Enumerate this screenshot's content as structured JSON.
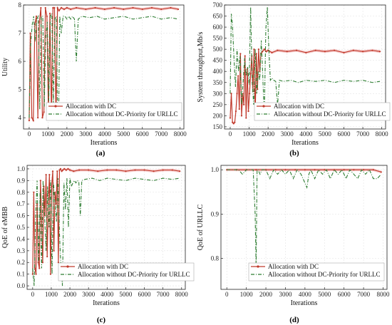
{
  "colors": {
    "dc": "#c0392b",
    "nodc": "#2e7d32",
    "band": "#f4b6b6",
    "grid": "#e3e3e3"
  },
  "legend": {
    "dc": "Allocation with DC",
    "nodc": "Allocation without DC-Priority for URLLC"
  },
  "chart_data": [
    {
      "type": "line",
      "panel_label": "(a)",
      "xlabel": "Iterations",
      "ylabel": "Utility",
      "xlim": [
        -300,
        8200
      ],
      "ylim": [
        3.6,
        8.0
      ],
      "xticks": [
        0,
        1000,
        2000,
        3000,
        4000,
        5000,
        6000,
        7000,
        8000
      ],
      "yticks": [
        4,
        5,
        6,
        7,
        8
      ],
      "ytick_labels": [
        "4",
        "5",
        "6",
        "7",
        "8"
      ],
      "grid": true,
      "legend_position": "bottom-center",
      "series": [
        {
          "name": "Allocation with DC",
          "x": [
            0,
            60,
            140,
            220,
            300,
            380,
            460,
            540,
            620,
            700,
            780,
            860,
            940,
            1020,
            1100,
            1180,
            1260,
            1340,
            1420,
            1500,
            1580,
            1700,
            1850,
            2000,
            2200,
            2500,
            3000,
            3500,
            4000,
            4500,
            5000,
            5500,
            6000,
            6500,
            7000,
            7500,
            7900
          ],
          "y": [
            3.9,
            7.0,
            4.0,
            3.9,
            7.3,
            7.6,
            4.0,
            7.4,
            7.9,
            4.0,
            4.2,
            7.9,
            7.6,
            4.1,
            7.7,
            4.0,
            7.9,
            7.9,
            4.0,
            7.9,
            7.8,
            7.9,
            7.85,
            7.9,
            7.85,
            7.9,
            7.85,
            7.9,
            7.85,
            7.9,
            7.85,
            7.9,
            7.85,
            7.9,
            7.85,
            7.9,
            7.85
          ]
        },
        {
          "name": "Allocation without DC-Priority for URLLC",
          "x": [
            0,
            80,
            160,
            240,
            320,
            400,
            480,
            560,
            640,
            720,
            800,
            880,
            960,
            1040,
            1120,
            1200,
            1280,
            1360,
            1440,
            1500,
            1560,
            1620,
            1700,
            1800,
            1900,
            2000,
            2100,
            2200,
            2300,
            2400,
            2500,
            2600,
            2800,
            3200,
            3600,
            4000,
            4500,
            5000,
            5500,
            6000,
            6500,
            7000,
            7500,
            7900
          ],
          "y": [
            4.0,
            6.6,
            7.3,
            7.6,
            6.7,
            7.5,
            7.6,
            4.3,
            7.6,
            7.6,
            4.4,
            6.9,
            7.4,
            4.6,
            7.6,
            7.7,
            4.5,
            7.5,
            7.6,
            4.2,
            3.9,
            7.6,
            7.0,
            7.6,
            7.6,
            7.5,
            7.6,
            7.5,
            7.6,
            7.5,
            6.0,
            7.5,
            7.6,
            7.55,
            7.6,
            7.5,
            7.55,
            7.6,
            7.5,
            7.55,
            7.6,
            7.5,
            7.55,
            7.5
          ]
        }
      ]
    },
    {
      "type": "line",
      "panel_label": "(b)",
      "xlabel": "Iterations",
      "ylabel": "System throughput,Mb/s",
      "xlim": [
        -300,
        8200
      ],
      "ylim": [
        140,
        700
      ],
      "xticks": [
        0,
        1000,
        2000,
        3000,
        4000,
        5000,
        6000,
        7000,
        8000
      ],
      "yticks": [
        150,
        200,
        250,
        300,
        350,
        400,
        450,
        500,
        550,
        600,
        650,
        700
      ],
      "ytick_labels": [
        "150",
        "200",
        "250",
        "300",
        "350",
        "400",
        "450",
        "500",
        "550",
        "600",
        "650",
        "700"
      ],
      "grid": true,
      "legend_position": "bottom-center",
      "series": [
        {
          "name": "Allocation with DC",
          "x": [
            0,
            60,
            120,
            180,
            240,
            300,
            360,
            420,
            480,
            540,
            600,
            660,
            720,
            780,
            840,
            900,
            960,
            1020,
            1080,
            1140,
            1200,
            1260,
            1320,
            1380,
            1440,
            1500,
            1560,
            1620,
            1700,
            1800,
            1900,
            2000,
            2200,
            2500,
            3000,
            3500,
            4000,
            4500,
            5000,
            5500,
            6000,
            6500,
            7000,
            7500,
            7900
          ],
          "y": [
            190,
            300,
            170,
            165,
            170,
            220,
            300,
            380,
            230,
            480,
            200,
            300,
            250,
            470,
            190,
            410,
            220,
            300,
            390,
            470,
            310,
            500,
            200,
            480,
            320,
            500,
            400,
            480,
            490,
            500,
            490,
            495,
            485,
            495,
            490,
            495,
            485,
            495,
            490,
            495,
            485,
            495,
            490,
            495,
            490
          ]
        },
        {
          "name": "Allocation without DC-Priority for URLLC",
          "x": [
            0,
            60,
            120,
            200,
            280,
            360,
            440,
            520,
            600,
            680,
            760,
            840,
            920,
            1000,
            1080,
            1160,
            1240,
            1320,
            1400,
            1480,
            1560,
            1640,
            1720,
            1800,
            1880,
            1960,
            2040,
            2120,
            2200,
            2300,
            2400,
            2500,
            2600,
            2800,
            3200,
            3600,
            4000,
            4500,
            5000,
            5500,
            6000,
            6500,
            7000,
            7500,
            7900
          ],
          "y": [
            300,
            660,
            610,
            460,
            330,
            500,
            400,
            470,
            250,
            350,
            460,
            380,
            420,
            340,
            690,
            350,
            250,
            500,
            300,
            400,
            360,
            540,
            380,
            200,
            590,
            690,
            500,
            360,
            370,
            360,
            355,
            250,
            360,
            355,
            360,
            350,
            360,
            355,
            360,
            350,
            360,
            355,
            360,
            350,
            355
          ]
        }
      ]
    },
    {
      "type": "line",
      "panel_label": "(c)",
      "xlabel": "Iterations",
      "ylabel": "QoE of eMBB",
      "xlim": [
        -300,
        8200
      ],
      "ylim": [
        -0.03,
        1.03
      ],
      "xticks": [
        0,
        1000,
        2000,
        3000,
        4000,
        5000,
        6000,
        7000,
        8000
      ],
      "yticks": [
        0.0,
        0.1,
        0.2,
        0.3,
        0.4,
        0.5,
        0.6,
        0.7,
        0.8,
        0.9,
        1.0
      ],
      "ytick_labels": [
        "0.0",
        "0.1",
        "0.2",
        "0.3",
        "0.4",
        "0.5",
        "0.6",
        "0.7",
        "0.8",
        "0.9",
        "1.0"
      ],
      "grid": true,
      "legend_position": "bottom-center",
      "series": [
        {
          "name": "Allocation with DC",
          "x": [
            0,
            60,
            120,
            180,
            240,
            300,
            360,
            420,
            480,
            540,
            600,
            660,
            720,
            780,
            840,
            900,
            960,
            1020,
            1080,
            1140,
            1200,
            1260,
            1320,
            1380,
            1440,
            1500,
            1560,
            1620,
            1700,
            1800,
            1900,
            2000,
            2200,
            2500,
            3000,
            3500,
            4000,
            4500,
            5000,
            5500,
            6000,
            6500,
            7000,
            7500,
            7900
          ],
          "y": [
            0.1,
            0.8,
            0.15,
            0.1,
            0.7,
            0.2,
            0.15,
            0.9,
            0.55,
            0.2,
            0.85,
            0.6,
            0.95,
            0.25,
            0.7,
            0.95,
            0.1,
            0.85,
            0.98,
            0.3,
            0.8,
            0.7,
            0.98,
            0.2,
            0.99,
            1.0,
            0.98,
            0.99,
            1.0,
            0.99,
            1.0,
            0.99,
            0.98,
            0.99,
            0.99,
            0.98,
            0.99,
            0.99,
            0.98,
            0.99,
            0.99,
            0.98,
            0.99,
            0.99,
            0.98
          ]
        },
        {
          "name": "Allocation without DC-Priority for URLLC",
          "x": [
            0,
            80,
            160,
            240,
            320,
            400,
            480,
            560,
            640,
            720,
            800,
            880,
            960,
            1040,
            1120,
            1200,
            1280,
            1360,
            1440,
            1520,
            1600,
            1680,
            1760,
            1840,
            1920,
            2000,
            2080,
            2160,
            2240,
            2320,
            2400,
            2480,
            2560,
            2640,
            2800,
            3200,
            3600,
            4000,
            4500,
            5000,
            5500,
            6000,
            6500,
            7000,
            7500,
            7900
          ],
          "y": [
            0.15,
            0.0,
            0.6,
            0.9,
            0.2,
            0.8,
            0.15,
            0.9,
            0.6,
            0.3,
            0.85,
            0.5,
            0.9,
            0.1,
            0.88,
            0.7,
            0.55,
            0.92,
            0.45,
            0.15,
            0.0,
            0.88,
            0.65,
            0.92,
            0.5,
            0.92,
            0.85,
            0.88,
            0.9,
            0.88,
            0.9,
            0.89,
            0.6,
            0.9,
            0.91,
            0.92,
            0.9,
            0.92,
            0.91,
            0.9,
            0.92,
            0.91,
            0.9,
            0.92,
            0.91,
            0.92
          ]
        }
      ]
    },
    {
      "type": "line",
      "panel_label": "(d)",
      "xlabel": "Iterations",
      "ylabel": "QoE of URLLC",
      "xlim": [
        -300,
        8200
      ],
      "ylim": [
        0.73,
        1.01
      ],
      "xticks": [
        0,
        1000,
        2000,
        3000,
        4000,
        5000,
        6000,
        7000,
        8000
      ],
      "yticks": [
        0.8,
        0.9,
        1.0
      ],
      "ytick_labels": [
        "0.8",
        "0.9",
        "1.0"
      ],
      "grid": true,
      "legend_position": "bottom-center",
      "series": [
        {
          "name": "Allocation with DC",
          "x": [
            0,
            500,
            1000,
            1500,
            2000,
            2500,
            3000,
            3500,
            4000,
            4500,
            5000,
            5500,
            6000,
            6500,
            7000,
            7500,
            7900
          ],
          "y": [
            1.0,
            1.0,
            1.0,
            1.0,
            1.0,
            1.0,
            1.0,
            1.0,
            1.0,
            1.0,
            1.0,
            1.0,
            1.0,
            1.0,
            1.0,
            1.0,
            0.995
          ]
        },
        {
          "name": "Allocation without DC-Priority for URLLC",
          "x": [
            0,
            200,
            400,
            600,
            800,
            1000,
            1200,
            1350,
            1450,
            1500,
            1550,
            1600,
            1700,
            1800,
            2000,
            2200,
            2400,
            2600,
            2800,
            3000,
            3200,
            3400,
            3600,
            3800,
            4000,
            4100,
            4200,
            4300,
            4500,
            4700,
            4900,
            5100,
            5300,
            5500,
            5700,
            5900,
            6100,
            6300,
            6500,
            6700,
            6900,
            7100,
            7300,
            7500,
            7700,
            7900
          ],
          "y": [
            1.0,
            1.0,
            1.0,
            1.0,
            0.99,
            1.0,
            1.0,
            1.0,
            0.9,
            0.78,
            1.0,
            1.0,
            0.99,
            1.0,
            1.0,
            0.98,
            1.0,
            0.99,
            1.0,
            0.99,
            1.0,
            0.98,
            1.0,
            0.99,
            0.97,
            0.96,
            0.99,
            1.0,
            0.98,
            1.0,
            0.99,
            1.0,
            0.98,
            1.0,
            0.99,
            1.0,
            0.98,
            1.0,
            0.99,
            0.98,
            1.0,
            0.99,
            1.0,
            0.98,
            0.98,
            0.99
          ]
        }
      ]
    }
  ]
}
